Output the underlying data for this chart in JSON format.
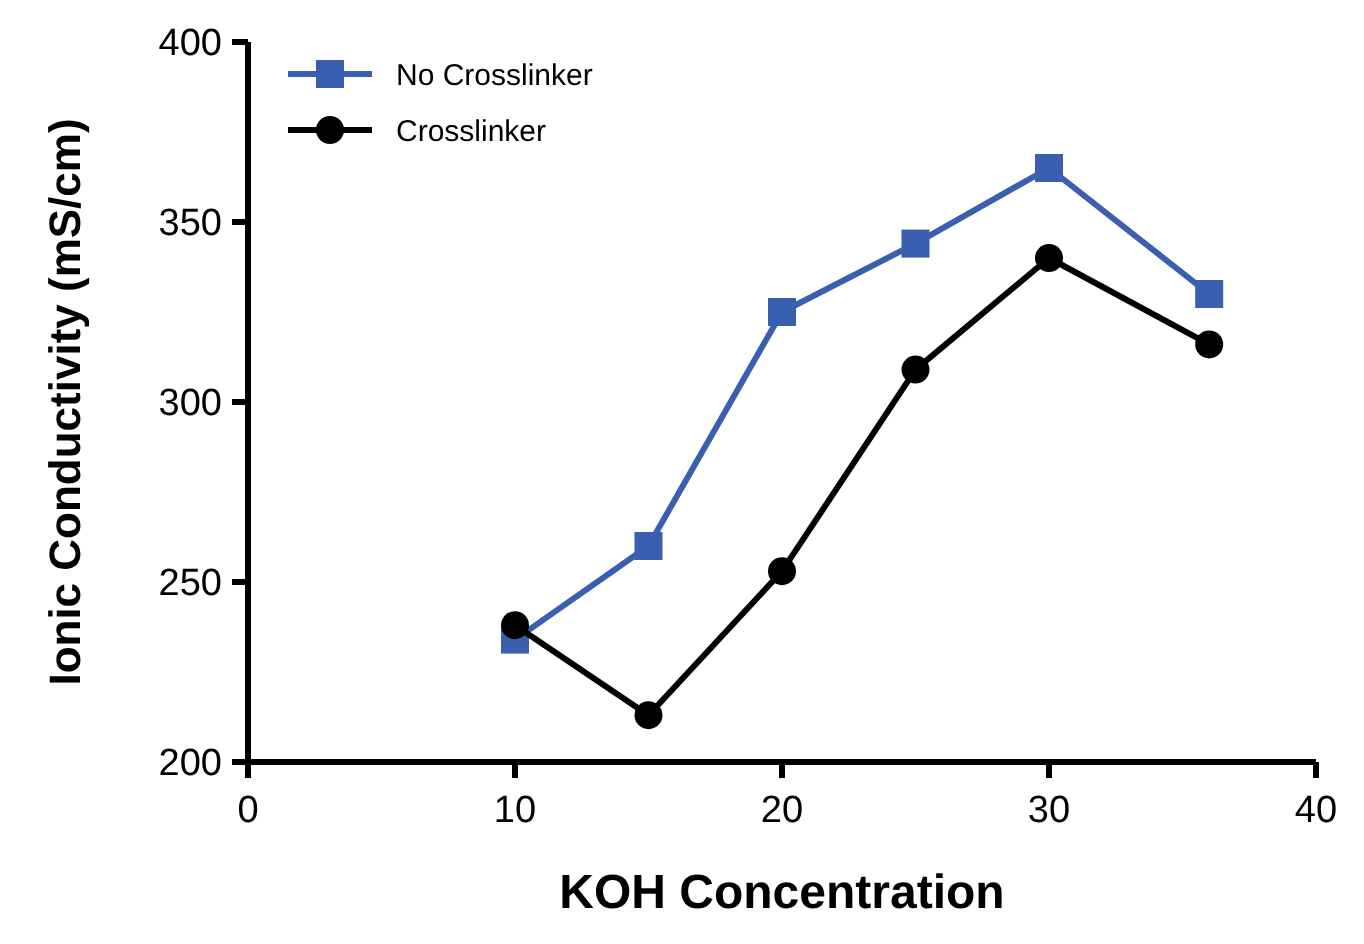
{
  "chart_data": {
    "type": "line",
    "xlabel": "KOH Concentration",
    "ylabel": "Ionic Conductivity (mS/cm)",
    "x": [
      10,
      15,
      20,
      25,
      30,
      36
    ],
    "series": [
      {
        "name": "No Crosslinker",
        "color": "#3a5fb0",
        "marker": "square",
        "values": [
          234,
          260,
          325,
          344,
          365,
          330
        ]
      },
      {
        "name": "Crosslinker",
        "color": "#000000",
        "marker": "circle",
        "values": [
          238,
          213,
          253,
          309,
          340,
          316
        ]
      }
    ],
    "xlim": [
      0,
      40
    ],
    "xticks": [
      0,
      10,
      20,
      30,
      40
    ],
    "ylim": [
      200,
      400
    ],
    "yticks": [
      200,
      250,
      300,
      350,
      400
    ],
    "grid": false,
    "legend": "top left"
  }
}
